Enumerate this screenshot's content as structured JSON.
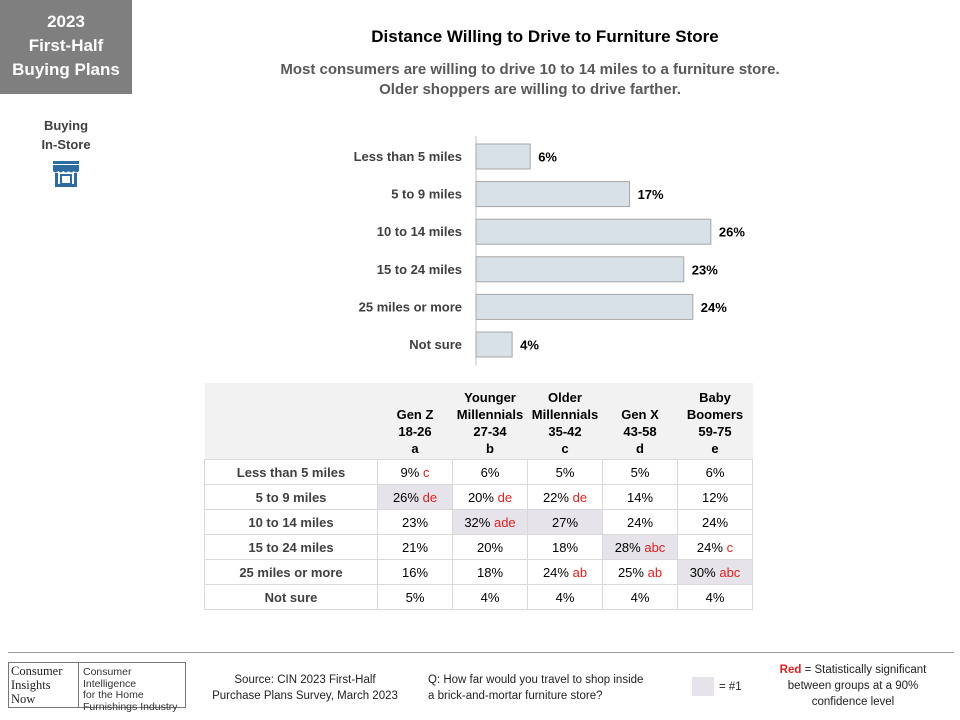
{
  "badge": {
    "year": "2023",
    "line1": "First-Half",
    "line2": "Buying Plans"
  },
  "section": {
    "line1": "Buying",
    "line2": "In-Store",
    "icon": "store-icon"
  },
  "title": "Distance Willing to Drive to Furniture Store",
  "subtitle_line1": "Most consumers are willing to drive 10 to 14 miles to a furniture store.",
  "subtitle_line2": "Older shoppers are willing to drive farther.",
  "chart_data": {
    "type": "bar",
    "orientation": "horizontal",
    "categories": [
      "Less than 5 miles",
      "5 to 9 miles",
      "10 to 14 miles",
      "15 to 24 miles",
      "25 miles or more",
      "Not sure"
    ],
    "values": [
      6,
      17,
      26,
      23,
      24,
      4
    ],
    "value_labels": [
      "6%",
      "17%",
      "26%",
      "23%",
      "24%",
      "4%"
    ],
    "xlim": [
      0,
      30
    ],
    "bar_color": "#d9e1e8",
    "bar_edge_color": "#a6a6a6"
  },
  "table": {
    "columns": [
      {
        "line1": "",
        "line2": "Gen Z",
        "line3": "18-26",
        "letter": "a"
      },
      {
        "line1": "Younger",
        "line2": "Millennials",
        "line3": "27-34",
        "letter": "b"
      },
      {
        "line1": "Older",
        "line2": "Millennials",
        "line3": "35-42",
        "letter": "c"
      },
      {
        "line1": "",
        "line2": "Gen X",
        "line3": "43-58",
        "letter": "d"
      },
      {
        "line1": "Baby",
        "line2": "Boomers",
        "line3": "59-75",
        "letter": "e"
      }
    ],
    "rows": [
      {
        "label": "Less than 5 miles",
        "cells": [
          {
            "v": "9%",
            "sig": "c",
            "hl": false
          },
          {
            "v": "6%",
            "sig": "",
            "hl": false
          },
          {
            "v": "5%",
            "sig": "",
            "hl": false
          },
          {
            "v": "5%",
            "sig": "",
            "hl": false
          },
          {
            "v": "6%",
            "sig": "",
            "hl": false
          }
        ]
      },
      {
        "label": "5 to 9 miles",
        "cells": [
          {
            "v": "26%",
            "sig": "de",
            "hl": true
          },
          {
            "v": "20%",
            "sig": "de",
            "hl": false
          },
          {
            "v": "22%",
            "sig": "de",
            "hl": false
          },
          {
            "v": "14%",
            "sig": "",
            "hl": false
          },
          {
            "v": "12%",
            "sig": "",
            "hl": false
          }
        ]
      },
      {
        "label": "10 to 14 miles",
        "cells": [
          {
            "v": "23%",
            "sig": "",
            "hl": false
          },
          {
            "v": "32%",
            "sig": "ade",
            "hl": true
          },
          {
            "v": "27%",
            "sig": "",
            "hl": true
          },
          {
            "v": "24%",
            "sig": "",
            "hl": false
          },
          {
            "v": "24%",
            "sig": "",
            "hl": false
          }
        ]
      },
      {
        "label": "15 to 24 miles",
        "cells": [
          {
            "v": "21%",
            "sig": "",
            "hl": false
          },
          {
            "v": "20%",
            "sig": "",
            "hl": false
          },
          {
            "v": "18%",
            "sig": "",
            "hl": false
          },
          {
            "v": "28%",
            "sig": "abc",
            "hl": true
          },
          {
            "v": "24%",
            "sig": "c",
            "hl": false
          }
        ]
      },
      {
        "label": "25 miles or more",
        "cells": [
          {
            "v": "16%",
            "sig": "",
            "hl": false
          },
          {
            "v": "18%",
            "sig": "",
            "hl": false
          },
          {
            "v": "24%",
            "sig": "ab",
            "hl": false
          },
          {
            "v": "25%",
            "sig": "ab",
            "hl": false
          },
          {
            "v": "30%",
            "sig": "abc",
            "hl": true
          }
        ]
      },
      {
        "label": "Not sure",
        "cells": [
          {
            "v": "5%",
            "sig": "",
            "hl": false
          },
          {
            "v": "4%",
            "sig": "",
            "hl": false
          },
          {
            "v": "4%",
            "sig": "",
            "hl": false
          },
          {
            "v": "4%",
            "sig": "",
            "hl": false
          },
          {
            "v": "4%",
            "sig": "",
            "hl": false
          }
        ]
      }
    ],
    "highlight_color": "#e6e4ea",
    "sig_color": "#e02020"
  },
  "footer": {
    "logo_left": [
      "Consumer",
      "Insights",
      "Now"
    ],
    "logo_right": [
      "Consumer Intelligence",
      "for the Home",
      "Furnishings Industry"
    ],
    "source_line1": "Source:  CIN 2023 First-Half",
    "source_line2": "Purchase Plans Survey, March 2023",
    "question_line1": "Q: How far would you travel to shop inside",
    "question_line2": "a brick-and-mortar furniture store?",
    "legend_label": "= #1",
    "red_word": "Red",
    "red_rest": " = Statistically significant",
    "red_line2": "between  groups at a 90%",
    "red_line3": "confidence level"
  }
}
